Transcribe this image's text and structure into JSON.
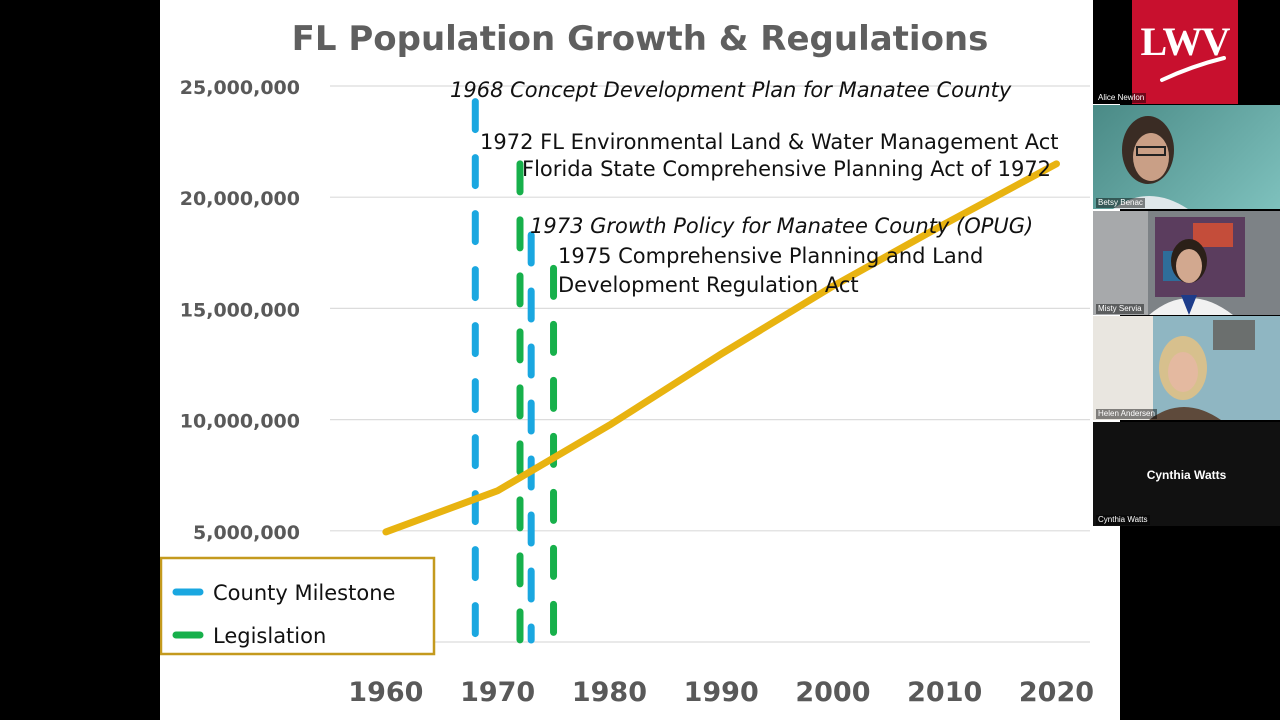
{
  "colors": {
    "population_line": "#e8b310",
    "county_milestone": "#1aa7e0",
    "legislation": "#17b04b",
    "legend_border": "#c49a1e",
    "title": "#5f5f5f",
    "tick": "#595959",
    "lwv_red": "#c8102e"
  },
  "icons": {
    "logo": "lwv-logo"
  },
  "chart_data": {
    "type": "line",
    "title": "FL Population Growth & Regulations",
    "xlabel": "",
    "ylabel": "",
    "xlim": [
      1955,
      2023
    ],
    "ylim": [
      0,
      25000000
    ],
    "x_ticks": [
      1960,
      1970,
      1980,
      1990,
      2000,
      2010,
      2020
    ],
    "x_tick_labels": [
      "1960",
      "1970",
      "1980",
      "1990",
      "2000",
      "2010",
      "2020"
    ],
    "y_ticks": [
      5000000,
      10000000,
      15000000,
      20000000,
      25000000
    ],
    "y_tick_labels": [
      "5,000,000",
      "10,000,000",
      "15,000,000",
      "20,000,000",
      "25,000,000"
    ],
    "grid": true,
    "series": [
      {
        "name": "FL Population",
        "x": [
          1960,
          1970,
          1980,
          1990,
          2000,
          2010,
          2020
        ],
        "values": [
          4950000,
          6800000,
          9750000,
          12950000,
          16000000,
          18800000,
          21500000
        ]
      }
    ],
    "markers": [
      {
        "category": "County Milestone",
        "year": 1968,
        "top": 24300000,
        "label": "1968 Concept Development Plan for Manatee County",
        "italic": true
      },
      {
        "category": "Legislation",
        "year": 1972,
        "top": 21500000,
        "label": "1972 FL Environmental Land & Water Management Act",
        "italic": false
      },
      {
        "category": "County Milestone",
        "year": 1973,
        "top": 18300000,
        "label": "1973 Growth Policy for Manatee County (OPUG)",
        "italic": true
      },
      {
        "category": "Legislation",
        "year": 1975,
        "top": 16800000,
        "label": "1975 Comprehensive Planning and Land",
        "italic": false
      }
    ],
    "annotations": [
      "Florida State Comprehensive Planning Act of 1972",
      "Development Regulation Act"
    ],
    "legend": {
      "position": "bottom-left",
      "entries": [
        "County Milestone",
        "Legislation"
      ]
    }
  },
  "participants": [
    {
      "name": "Alice Newlon",
      "kind": "logo",
      "logo_text": "LWV"
    },
    {
      "name": "Betsy Benac",
      "kind": "video"
    },
    {
      "name": "Misty Servia",
      "kind": "video"
    },
    {
      "name": "Helen Andersen",
      "kind": "video"
    },
    {
      "name": "Cynthia Watts",
      "kind": "name-only",
      "center_label": "Cynthia Watts"
    }
  ]
}
